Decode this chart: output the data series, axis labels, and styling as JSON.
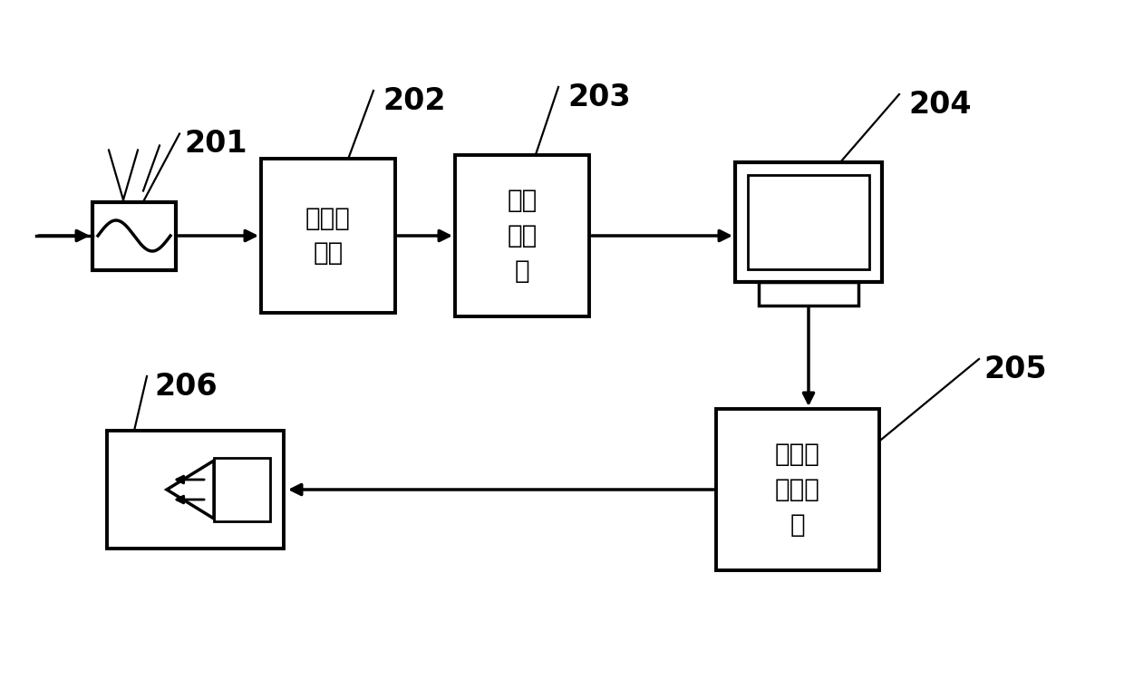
{
  "bg_color": "#ffffff",
  "lc": "#000000",
  "label_201": "201",
  "label_202": "202",
  "label_203": "203",
  "label_204": "204",
  "label_205": "205",
  "label_206": "206",
  "text_202": "数据解\n码器",
  "text_203": "数据\n存储\n器",
  "text_205": "信号转\n换编码\n器",
  "font_label": 24,
  "font_cn": 20,
  "fig_w": 12.4,
  "fig_h": 7.5,
  "dpi": 100
}
